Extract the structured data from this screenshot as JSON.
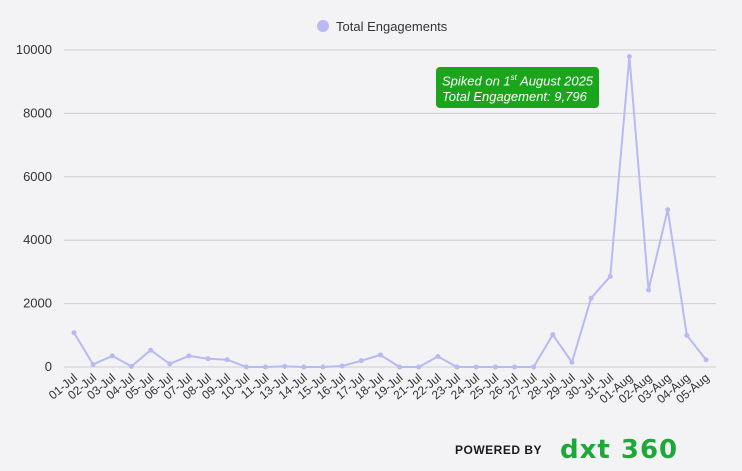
{
  "chart_data": {
    "type": "line",
    "legend": {
      "label": "Total Engagements",
      "position": "top-center"
    },
    "color": "#b9b9f3",
    "categories": [
      "01-Jul",
      "02-Jul",
      "03-Jul",
      "04-Jul",
      "05-Jul",
      "06-Jul",
      "07-Jul",
      "08-Jul",
      "09-Jul",
      "10-Jul",
      "11-Jul",
      "13-Jul",
      "14-Jul",
      "15-Jul",
      "16-Jul",
      "17-Jul",
      "18-Jul",
      "19-Jul",
      "21-Jul",
      "22-Jul",
      "23-Jul",
      "24-Jul",
      "25-Jul",
      "26-Jul",
      "27-Jul",
      "28-Jul",
      "29-Jul",
      "30-Jul",
      "31-Jul",
      "01-Aug",
      "02-Aug",
      "03-Aug",
      "04-Aug",
      "05-Aug"
    ],
    "values": [
      1080,
      80,
      350,
      20,
      530,
      100,
      350,
      260,
      230,
      0,
      0,
      20,
      0,
      0,
      30,
      200,
      380,
      0,
      0,
      330,
      0,
      0,
      0,
      0,
      0,
      1020,
      150,
      2170,
      2860,
      9796,
      2430,
      4960,
      1000,
      230
    ],
    "ylim": [
      0,
      10000
    ],
    "yticks": [
      0,
      2000,
      4000,
      6000,
      8000,
      10000
    ],
    "grid": true,
    "annotation": {
      "line1_prefix": "Spiked on 1",
      "line1_sup": "st",
      "line1_suffix": " August 2025",
      "line2": "Total Engagement:  9,796"
    }
  },
  "footer": {
    "powered_by": "POWERED BY",
    "brand": "dxt 360"
  }
}
